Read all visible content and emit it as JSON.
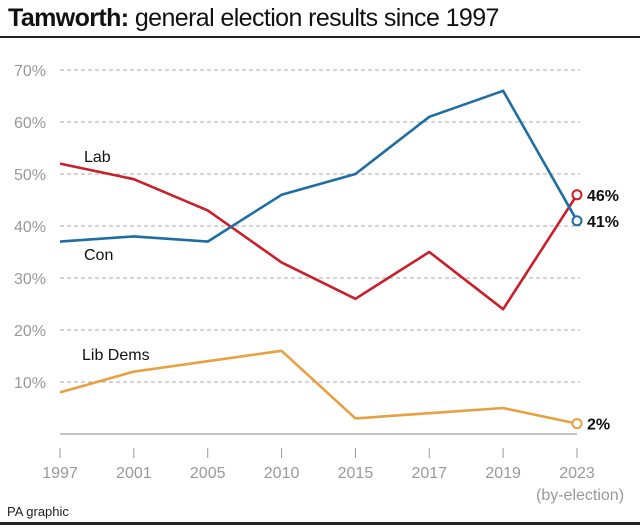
{
  "title": {
    "bold": "Tamworth:",
    "rest": " general election results since 1997"
  },
  "footer": "PA graphic",
  "chart_data": {
    "type": "line",
    "title": "Tamworth: general election results since 1997",
    "categories": [
      "1997",
      "2001",
      "2005",
      "2010",
      "2015",
      "2017",
      "2019",
      "2023"
    ],
    "category_note": "(by-election)",
    "ylim": [
      0,
      70
    ],
    "yticks": [
      "10%",
      "20%",
      "30%",
      "40%",
      "50%",
      "60%",
      "70%"
    ],
    "grid": true,
    "series": [
      {
        "name": "Lab",
        "color": "#c8202a",
        "values": [
          52,
          49,
          43,
          33,
          26,
          35,
          24,
          46
        ],
        "end_label": "46%"
      },
      {
        "name": "Con",
        "color": "#1f6ea3",
        "values": [
          37,
          38,
          37,
          46,
          50,
          61,
          66,
          41
        ],
        "end_label": "41%"
      },
      {
        "name": "Lib Dems",
        "color": "#e8a040",
        "values": [
          8,
          12,
          14,
          16,
          3,
          4,
          5,
          2
        ],
        "end_label": "2%"
      }
    ]
  }
}
